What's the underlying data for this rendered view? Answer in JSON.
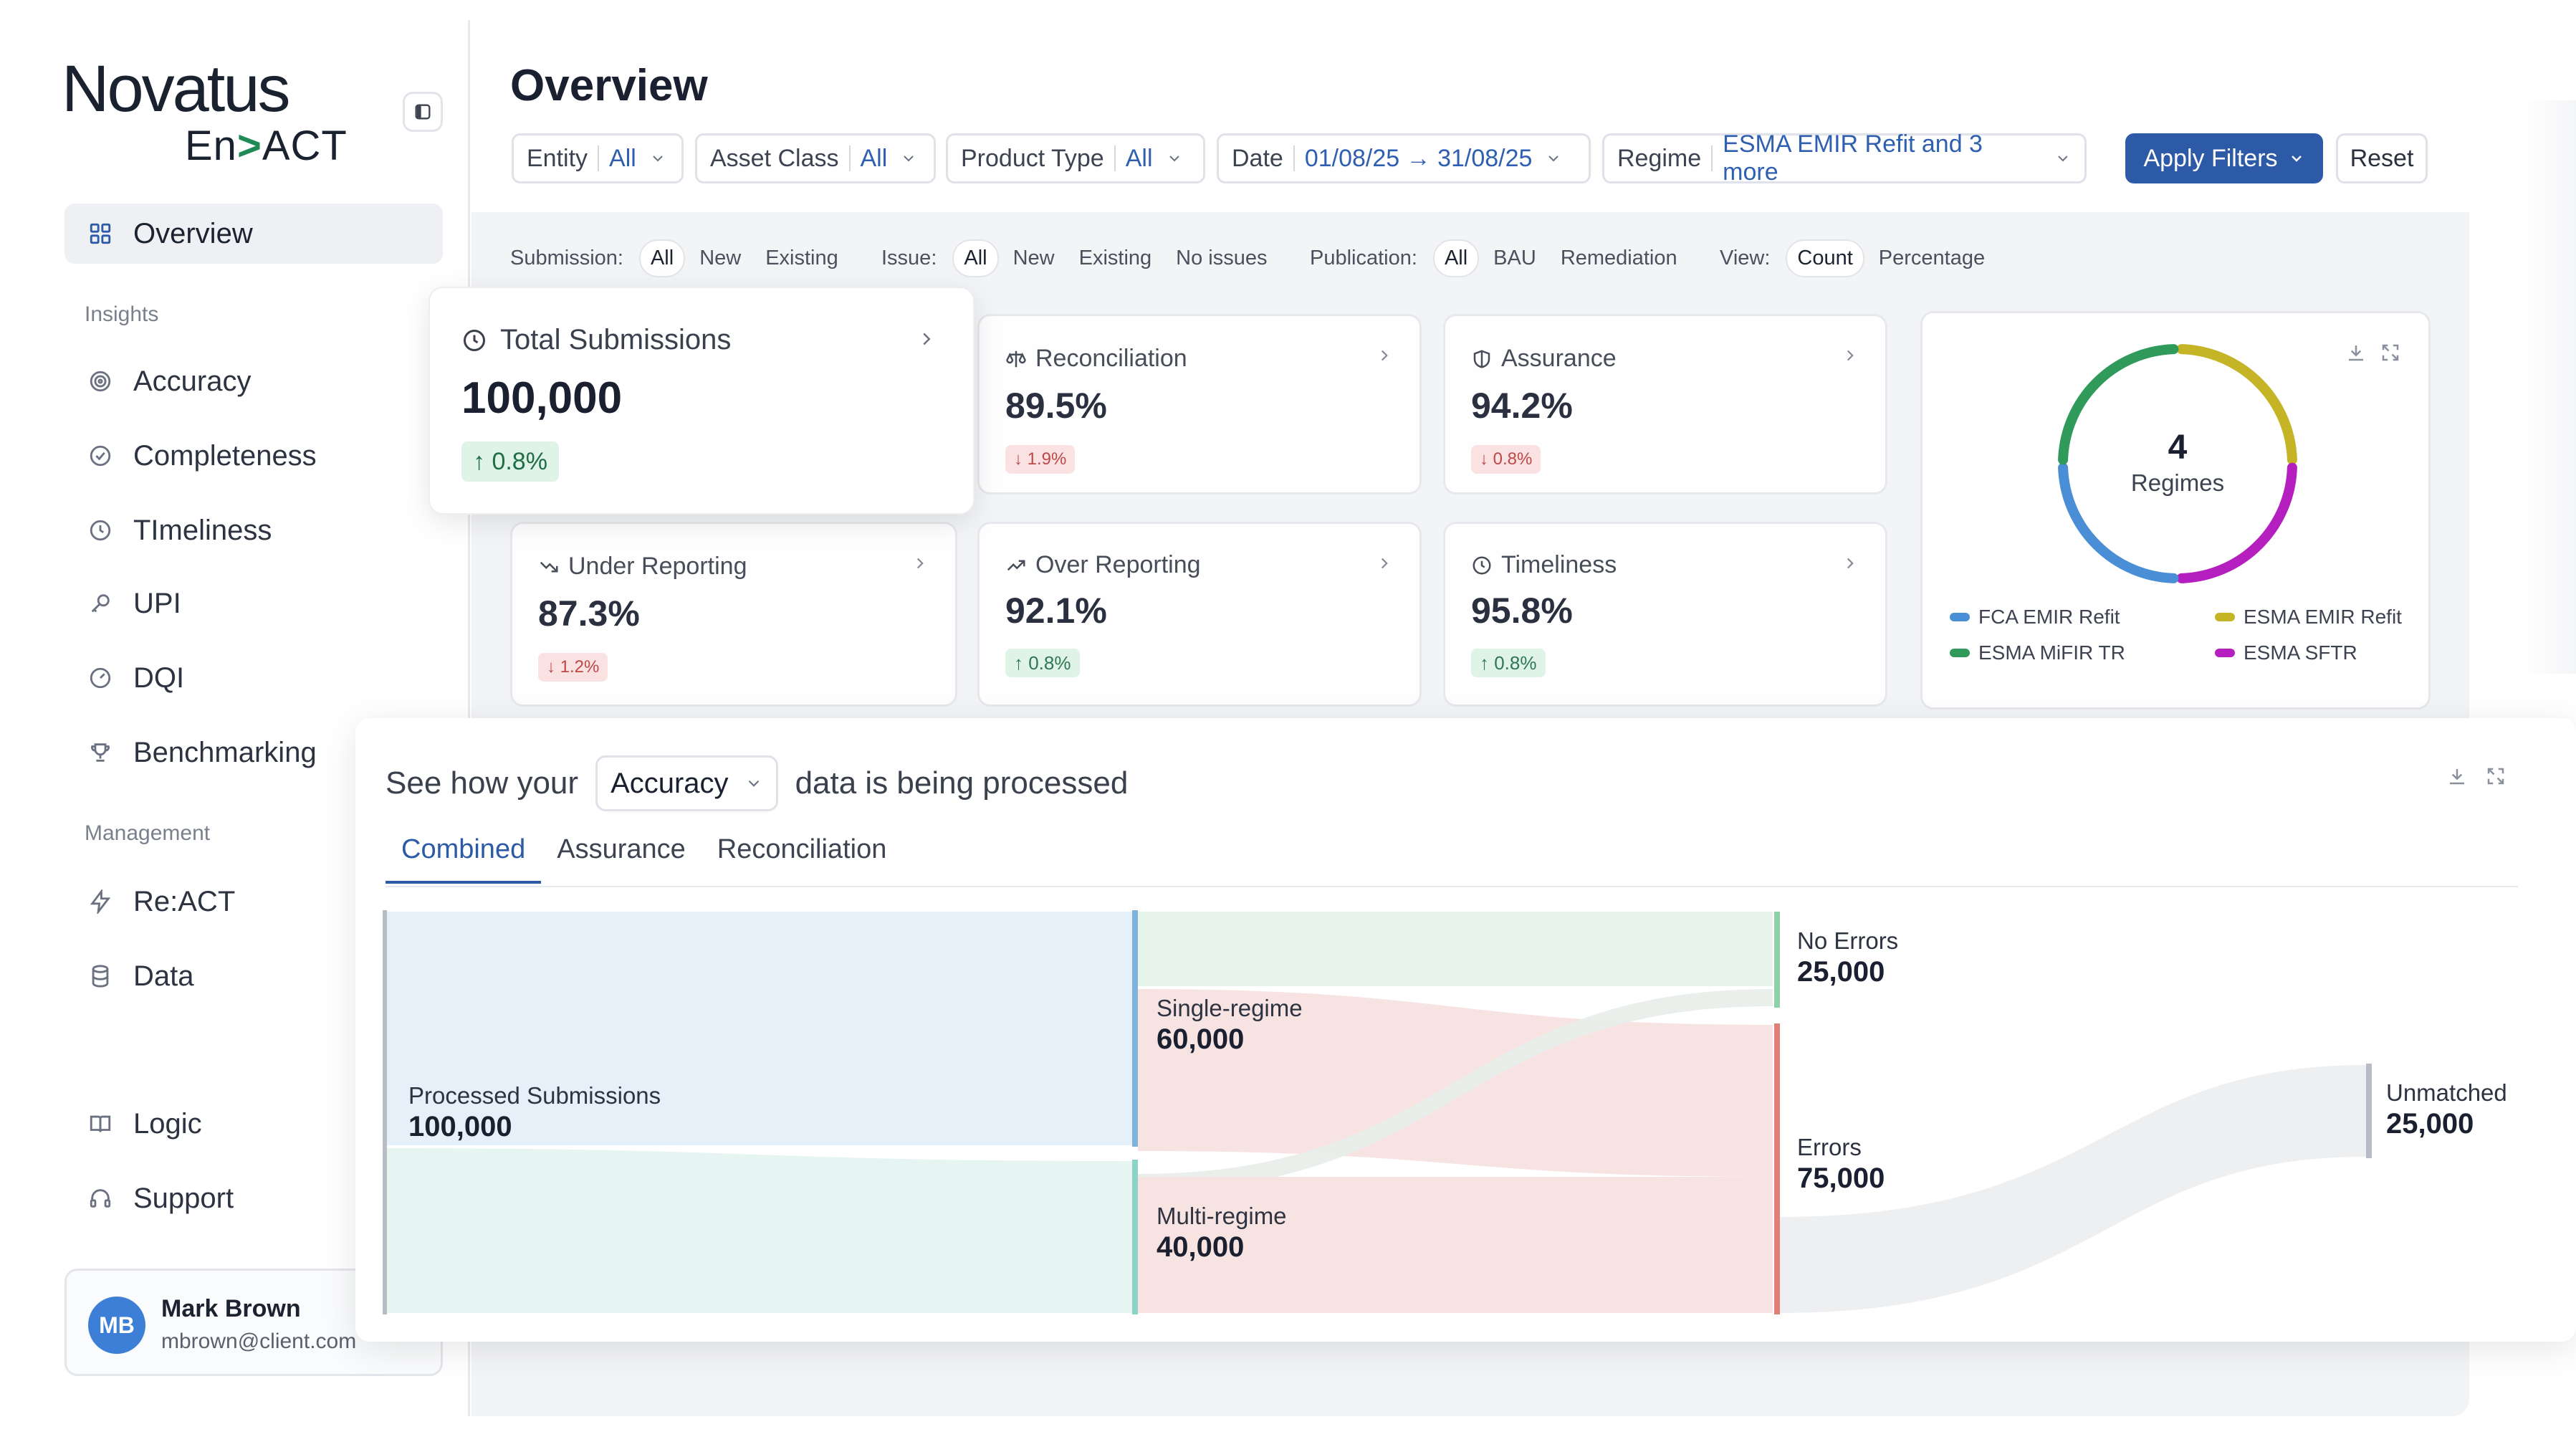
{
  "brand": {
    "name": "Novatus",
    "product_prefix": "En",
    "product_chevron": ">",
    "product_suffix": "ACT"
  },
  "sidebar": {
    "items": [
      {
        "label": "Overview",
        "icon": "grid-icon",
        "active": true
      },
      {
        "label": "Accuracy",
        "icon": "target-icon"
      },
      {
        "label": "Completeness",
        "icon": "check-circle-icon"
      },
      {
        "label": "TImeliness",
        "icon": "clock-icon"
      },
      {
        "label": "UPI",
        "icon": "key-icon"
      },
      {
        "label": "DQI",
        "icon": "gauge-icon"
      },
      {
        "label": "Benchmarking",
        "icon": "trophy-icon"
      },
      {
        "label": "Re:ACT",
        "icon": "bolt-icon"
      },
      {
        "label": "Data",
        "icon": "database-icon"
      },
      {
        "label": "Logic",
        "icon": "book-icon"
      },
      {
        "label": "Support",
        "icon": "headset-icon"
      }
    ],
    "section_insights": "Insights",
    "section_management": "Management",
    "user": {
      "initials": "MB",
      "name": "Mark Brown",
      "email": "mbrown@client.com"
    }
  },
  "header": {
    "title": "Overview"
  },
  "filters": [
    {
      "label": "Entity",
      "value": "All"
    },
    {
      "label": "Asset Class",
      "value": "All"
    },
    {
      "label": "Product Type",
      "value": "All"
    },
    {
      "label": "Date",
      "value": "01/08/25 → 31/08/25"
    },
    {
      "label": "Regime",
      "value": "ESMA EMIR Refit and 3 more"
    }
  ],
  "actions": {
    "apply": "Apply Filters",
    "reset": "Reset"
  },
  "segments": {
    "submission": {
      "label": "Submission:",
      "options": [
        "All",
        "New",
        "Existing"
      ],
      "selected": "All"
    },
    "issue": {
      "label": "Issue:",
      "options": [
        "All",
        "New",
        "Existing",
        "No issues"
      ],
      "selected": "All"
    },
    "publication": {
      "label": "Publication:",
      "options": [
        "All",
        "BAU",
        "Remediation"
      ],
      "selected": "All"
    },
    "view": {
      "label": "View:",
      "options": [
        "Count",
        "Percentage"
      ],
      "selected": "Count"
    }
  },
  "kpis": {
    "total": {
      "label": "Total Submissions",
      "value": "100,000",
      "change": "↑ 0.8%"
    },
    "reconciliation": {
      "label": "Reconciliation",
      "value": "89.5%",
      "change": "↓ 1.9%"
    },
    "assurance": {
      "label": "Assurance",
      "value": "94.2%",
      "change": "↓ 0.8%"
    },
    "under": {
      "label": "Under Reporting",
      "value": "87.3%",
      "change": "↓ 1.2%"
    },
    "over": {
      "label": "Over Reporting",
      "value": "92.1%",
      "change": "↑ 0.8%"
    },
    "timeliness": {
      "label": "Timeliness",
      "value": "95.8%",
      "change": "↑ 0.8%"
    }
  },
  "regimes": {
    "count": "4",
    "label": "Regimes",
    "legend": [
      {
        "name": "FCA EMIR Refit",
        "color": "#4a8ed6"
      },
      {
        "name": "ESMA EMIR Refit",
        "color": "#c4b426"
      },
      {
        "name": "ESMA MiFIR TR",
        "color": "#2f9a5a"
      },
      {
        "name": "ESMA SFTR",
        "color": "#b61fbf"
      }
    ]
  },
  "flow": {
    "title_prefix": "See how your",
    "selected_metric": "Accuracy",
    "title_suffix": "data is being processed",
    "tabs": [
      "Combined",
      "Assurance",
      "Reconciliation"
    ],
    "active_tab": "Combined",
    "nodes": {
      "processed": {
        "label": "Processed Submissions",
        "value": "100,000"
      },
      "single": {
        "label": "Single-regime",
        "value": "60,000"
      },
      "multi": {
        "label": "Multi-regime",
        "value": "40,000"
      },
      "no_errors": {
        "label": "No Errors",
        "value": "25,000"
      },
      "errors": {
        "label": "Errors",
        "value": "75,000"
      },
      "unmatched": {
        "label": "Unmatched",
        "value": "25,000"
      }
    }
  }
}
